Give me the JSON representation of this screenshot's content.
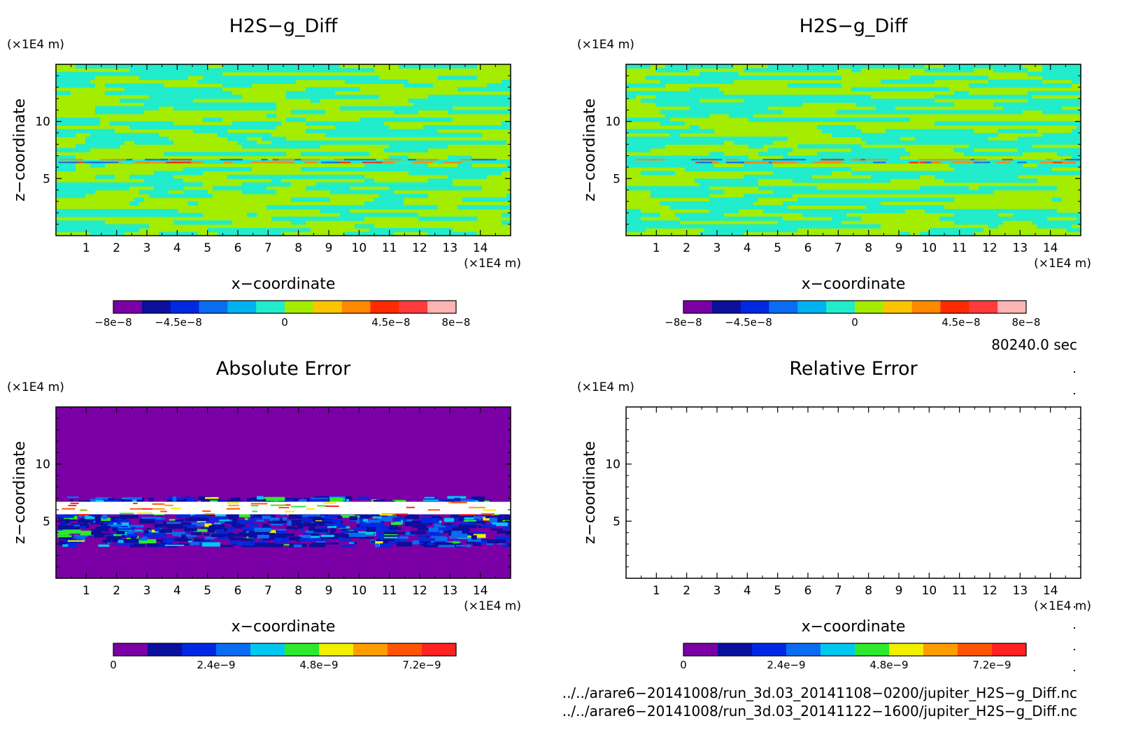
{
  "chart_data": [
    {
      "type": "heatmap",
      "title": "H2S−g_Diff",
      "xlabel": "x−coordinate",
      "ylabel": "z−coordinate",
      "x_unit": "(×1E4 m)",
      "y_unit": "(×1E4 m)",
      "xlim": [
        0,
        15
      ],
      "ylim": [
        0,
        15
      ],
      "x_ticks": [
        "1",
        "2",
        "3",
        "4",
        "5",
        "6",
        "7",
        "8",
        "9",
        "10",
        "11",
        "12",
        "13",
        "14"
      ],
      "y_ticks": [
        "5",
        "10"
      ],
      "colorbar": {
        "colors": [
          "#7a00a5",
          "#0a0f9c",
          "#0028e0",
          "#0a6cf0",
          "#00b3f0",
          "#21eccc",
          "#a4ec00",
          "#ffc400",
          "#ff8800",
          "#ff2a00",
          "#ff3b3b",
          "#ffb4b4"
        ],
        "tick_labels": [
          "−8e−8",
          "−4.5e−8",
          "0",
          "4.5e−8",
          "8e−8"
        ]
      },
      "field": "banded",
      "seed": 17
    },
    {
      "type": "heatmap",
      "title": "H2S−g_Diff",
      "xlabel": "x−coordinate",
      "ylabel": "z−coordinate",
      "x_unit": "(×1E4 m)",
      "y_unit": "(×1E4 m)",
      "xlim": [
        0,
        15
      ],
      "ylim": [
        0,
        15
      ],
      "x_ticks": [
        "1",
        "2",
        "3",
        "4",
        "5",
        "6",
        "7",
        "8",
        "9",
        "10",
        "11",
        "12",
        "13",
        "14"
      ],
      "y_ticks": [
        "5",
        "10"
      ],
      "colorbar": {
        "colors": [
          "#7a00a5",
          "#0a0f9c",
          "#0028e0",
          "#0a6cf0",
          "#00b3f0",
          "#21eccc",
          "#a4ec00",
          "#ffc400",
          "#ff8800",
          "#ff2a00",
          "#ff3b3b",
          "#ffb4b4"
        ],
        "tick_labels": [
          "−8e−8",
          "−4.5e−8",
          "0",
          "4.5e−8",
          "8e−8"
        ]
      },
      "field": "banded",
      "seed": 53
    },
    {
      "type": "heatmap",
      "title": "Absolute Error",
      "xlabel": "x−coordinate",
      "ylabel": "z−coordinate",
      "x_unit": "(×1E4 m)",
      "y_unit": "(×1E4 m)",
      "xlim": [
        0,
        15
      ],
      "ylim": [
        0,
        15
      ],
      "x_ticks": [
        "1",
        "2",
        "3",
        "4",
        "5",
        "6",
        "7",
        "8",
        "9",
        "10",
        "11",
        "12",
        "13",
        "14"
      ],
      "y_ticks": [
        "5",
        "10"
      ],
      "colorbar": {
        "colors": [
          "#7a00a5",
          "#0a0f9c",
          "#0028e0",
          "#0a6cf0",
          "#00c8f0",
          "#2ee82e",
          "#f0f000",
          "#ff9c00",
          "#ff5500",
          "#ff2222"
        ],
        "tick_labels": [
          "0",
          "2.4e−9",
          "4.8e−9",
          "7.2e−9"
        ]
      },
      "field": "error",
      "seed": 91
    },
    {
      "type": "heatmap",
      "title": "Relative Error",
      "xlabel": "x−coordinate",
      "ylabel": "z−coordinate",
      "x_unit": "(×1E4 m)",
      "y_unit": "(×1E4 m)",
      "xlim": [
        0,
        15
      ],
      "ylim": [
        0,
        15
      ],
      "x_ticks": [
        "1",
        "2",
        "3",
        "4",
        "5",
        "6",
        "7",
        "8",
        "9",
        "10",
        "11",
        "12",
        "13",
        "14"
      ],
      "y_ticks": [
        "5",
        "10"
      ],
      "colorbar": {
        "colors": [
          "#7a00a5",
          "#0a0f9c",
          "#0028e0",
          "#0a6cf0",
          "#00c8f0",
          "#2ee82e",
          "#f0f000",
          "#ff9c00",
          "#ff5500",
          "#ff2222"
        ],
        "tick_labels": [
          "0",
          "2.4e−9",
          "4.8e−9",
          "7.2e−9"
        ]
      },
      "field": "empty",
      "seed": 0
    }
  ],
  "time_label": "80240.0 sec",
  "file_paths": [
    "../../arare6−20141008/run_3d.03_20141108−0200/jupiter_H2S−g_Diff.nc",
    "../../arare6−20141008/run_3d.03_20141122−1600/jupiter_H2S−g_Diff.nc"
  ]
}
